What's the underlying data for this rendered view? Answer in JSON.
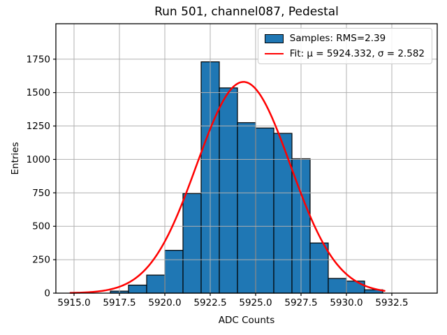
{
  "chart_data": {
    "type": "bar",
    "subtype": "histogram",
    "title": "Run 501, channel087, Pedestal",
    "xlabel": "ADC Counts",
    "ylabel": "Entries",
    "bin_width": 1,
    "bin_left_edges": [
      5917,
      5918,
      5919,
      5920,
      5921,
      5922,
      5923,
      5924,
      5925,
      5926,
      5927,
      5928,
      5929,
      5930,
      5931
    ],
    "values": [
      15,
      60,
      135,
      320,
      745,
      1730,
      1535,
      1275,
      1235,
      1195,
      1005,
      375,
      110,
      90,
      25
    ],
    "xlim": [
      5914.0,
      5935.0
    ],
    "ylim": [
      0,
      2015
    ],
    "xticks": {
      "values": [
        5915.0,
        5917.5,
        5920.0,
        5922.5,
        5925.0,
        5927.5,
        5930.0,
        5932.5
      ],
      "labels": [
        "5915.0",
        "5917.5",
        "5920.0",
        "5922.5",
        "5925.0",
        "5927.5",
        "5930.0",
        "5932.5"
      ]
    },
    "yticks": {
      "values": [
        0,
        250,
        500,
        750,
        1000,
        1250,
        1500,
        1750
      ],
      "labels": [
        "0",
        "250",
        "500",
        "750",
        "1000",
        "1250",
        "1500",
        "1750"
      ]
    },
    "grid": true,
    "legend_position": "upper right",
    "legend": [
      {
        "label": "Samples: RMS=2.39",
        "type": "patch",
        "color": "#1f77b4"
      },
      {
        "label": "Fit: μ = 5924.332, σ = 2.582",
        "type": "line",
        "color": "#ff0000"
      }
    ],
    "fit": {
      "mu": 5924.332,
      "sigma": 2.582,
      "amplitude": 1580,
      "x_start": 5914.8,
      "x_end": 5932.1
    },
    "colors": {
      "bar_fill": "#1f77b4",
      "bar_edge": "#000000",
      "fit_line": "#ff0000",
      "grid": "#b0b0b0",
      "axis": "#000000"
    }
  }
}
